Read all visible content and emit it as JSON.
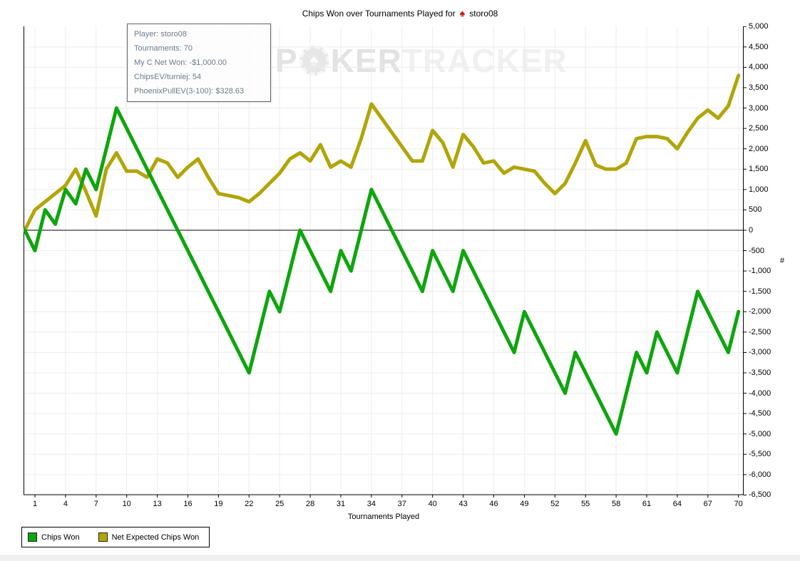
{
  "title": {
    "prefix": "Chips Won over Tournaments Played for",
    "player": "storo08"
  },
  "tooltip": {
    "lines": [
      "Player: storo08",
      "Tournaments: 70",
      "My C Net Won: -$1,000.00",
      "ChipsEV/turniej: 54",
      "PhoenixPullEV(3-100): $328.63"
    ]
  },
  "watermark": {
    "part1": "P",
    "part2": "KER",
    "part3": "TRACKER",
    "chip_glyph": "♠"
  },
  "axes": {
    "x_title": "Tournaments Played",
    "y_symbol": "#"
  },
  "chart_data": {
    "type": "line",
    "title": "Chips Won over Tournaments Played for storo08",
    "xlabel": "Tournaments Played",
    "ylabel": "#",
    "x_min": 0,
    "x_max": 70,
    "ylim": [
      -6500,
      5000
    ],
    "y_tick_step": 500,
    "grid": true,
    "legend_position": "bottom-left",
    "zero_line": true,
    "y_tick_labels": [
      "5,000",
      "4,500",
      "4,000",
      "3,500",
      "3,000",
      "2,500",
      "2,000",
      "1,500",
      "1,000",
      "500",
      "0",
      "-500",
      "-1,000",
      "-1,500",
      "-2,000",
      "-2,500",
      "-3,000",
      "-3,500",
      "-4,000",
      "-4,500",
      "-5,000",
      "-5,500",
      "-6,000",
      "-6,500"
    ],
    "x_tick_values": [
      1,
      4,
      7,
      10,
      13,
      16,
      19,
      22,
      25,
      28,
      31,
      34,
      37,
      40,
      43,
      46,
      49,
      52,
      55,
      58,
      61,
      64,
      67,
      70
    ],
    "x_tick_labels": [
      "1",
      "4",
      "7",
      "10",
      "13",
      "16",
      "19",
      "22",
      "25",
      "28",
      "31",
      "34",
      "37",
      "40",
      "43",
      "46",
      "49",
      "52",
      "55",
      "58",
      "61",
      "64",
      "67",
      "70"
    ],
    "series": [
      {
        "name": "Chips Won",
        "color": "#0ea50e",
        "values": [
          0,
          -500,
          500,
          150,
          1000,
          650,
          1500,
          1000,
          2000,
          3000,
          2500,
          2000,
          1500,
          1000,
          500,
          0,
          -500,
          -1000,
          -1500,
          -2000,
          -2500,
          -3000,
          -3500,
          -2500,
          -1500,
          -2000,
          -1000,
          0,
          -500,
          -1000,
          -1500,
          -500,
          -1000,
          0,
          1000,
          500,
          0,
          -500,
          -1000,
          -1500,
          -500,
          -1000,
          -1500,
          -500,
          -1000,
          -1500,
          -2000,
          -2500,
          -3000,
          -2000,
          -2500,
          -3000,
          -3500,
          -4000,
          -3000,
          -3500,
          -4000,
          -4500,
          -5000,
          -4000,
          -3000,
          -3500,
          -2500,
          -3000,
          -3500,
          -2500,
          -1500,
          -2000,
          -2500,
          -3000,
          -2000
        ]
      },
      {
        "name": "Net Expected Chips Won",
        "color": "#b1a509",
        "values": [
          0,
          500,
          700,
          900,
          1100,
          1500,
          950,
          350,
          1500,
          1900,
          1450,
          1450,
          1300,
          1750,
          1650,
          1300,
          1550,
          1750,
          1300,
          900,
          850,
          800,
          700,
          900,
          1150,
          1400,
          1750,
          1900,
          1700,
          2100,
          1550,
          1700,
          1550,
          2250,
          3100,
          2750,
          2400,
          2050,
          1700,
          1700,
          2450,
          2150,
          1550,
          2350,
          2050,
          1650,
          1700,
          1400,
          1550,
          1500,
          1450,
          1150,
          900,
          1150,
          1650,
          2200,
          1600,
          1500,
          1500,
          1650,
          2250,
          2300,
          2300,
          2250,
          2000,
          2400,
          2750,
          2950,
          2750,
          3050,
          3800
        ]
      }
    ],
    "colors": {
      "grid": "#ececec",
      "axis": "#000000",
      "background": "#ffffff"
    }
  }
}
